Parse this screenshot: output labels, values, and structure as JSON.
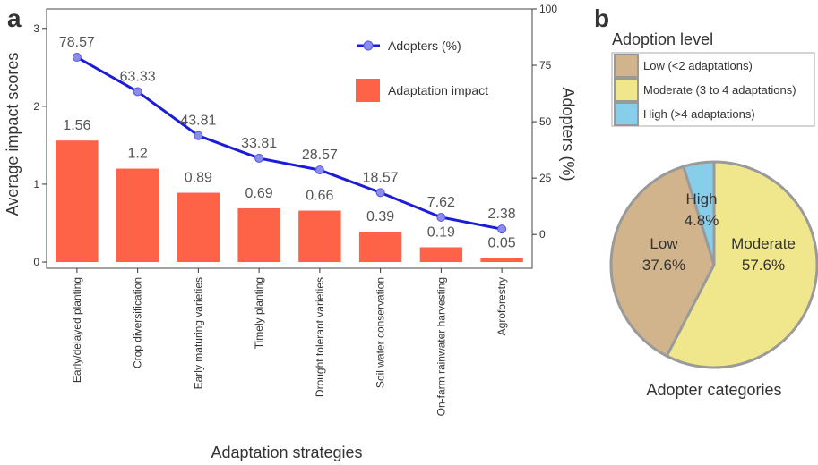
{
  "panels": {
    "a_label": "a",
    "b_label": "b"
  },
  "chart_data": [
    {
      "type": "bar",
      "categories": [
        "Early/delayed planting",
        "Crop diversification",
        "Early maturing varieties",
        "Timely planting",
        "Drought tolerant varieties",
        "Soil water conservation",
        "On-farm rainwater harvesting",
        "Agroforestry"
      ],
      "series": [
        {
          "name": "Adaptation impact",
          "type": "bar",
          "axis": "left",
          "values": [
            1.56,
            1.2,
            0.89,
            0.69,
            0.66,
            0.39,
            0.19,
            0.05
          ],
          "color": "#FF6347"
        },
        {
          "name": "Adopters (%)",
          "type": "line",
          "axis": "right",
          "values": [
            78.57,
            63.33,
            43.81,
            33.81,
            28.57,
            18.57,
            7.62,
            2.38
          ],
          "color": "#1C1CD8"
        }
      ],
      "xlabel": "Adaptation strategies",
      "ylabel": "Average impact scores",
      "ylabel_right": "Adopters (%)",
      "ylim": [
        -0.08,
        3.25
      ],
      "ylim_right": [
        -15,
        100
      ],
      "yticks": [
        0,
        1,
        2,
        3
      ],
      "yticks_right": [
        0,
        25,
        50,
        75,
        100
      ],
      "grid": false,
      "legend": "top-right"
    },
    {
      "type": "pie",
      "categories": [
        "Low",
        "Moderate",
        "High"
      ],
      "values": [
        37.6,
        57.6,
        4.8
      ],
      "value_labels": [
        "37.6%",
        "57.6%",
        "4.8%"
      ],
      "colors": [
        "#D2B48C",
        "#F0E68C",
        "#87CEEB"
      ],
      "legend_title": "Adoption level",
      "legend_entries": [
        "Low (<2 adaptations)",
        "Moderate (3 to 4 adaptations)",
        "High (>4 adaptations)"
      ],
      "xlabel": "Adopter categories",
      "legend": "top"
    }
  ]
}
